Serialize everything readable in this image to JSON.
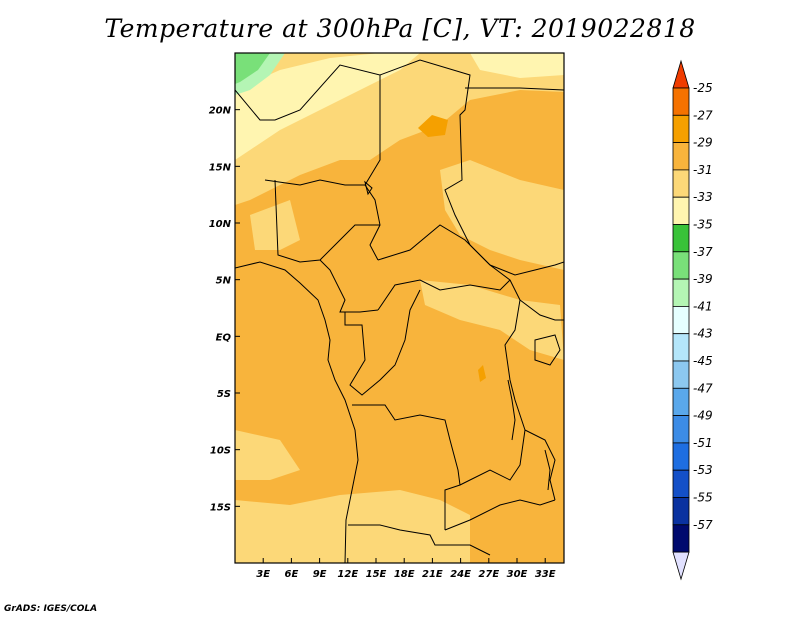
{
  "title": "Temperature at 300hPa [C], VT: 2019022818",
  "credit": "GrADS: IGES/COLA",
  "map": {
    "lon_range": [
      0,
      35
    ],
    "lat_range": [
      -20,
      25
    ],
    "x_ticks": [
      {
        "value": 3,
        "label": "3E"
      },
      {
        "value": 6,
        "label": "6E"
      },
      {
        "value": 9,
        "label": "9E"
      },
      {
        "value": 12,
        "label": "12E"
      },
      {
        "value": 15,
        "label": "15E"
      },
      {
        "value": 18,
        "label": "18E"
      },
      {
        "value": 21,
        "label": "21E"
      },
      {
        "value": 24,
        "label": "24E"
      },
      {
        "value": 27,
        "label": "27E"
      },
      {
        "value": 30,
        "label": "30E"
      },
      {
        "value": 33,
        "label": "33E"
      }
    ],
    "y_ticks": [
      {
        "value": 20,
        "label": "20N"
      },
      {
        "value": 15,
        "label": "15N"
      },
      {
        "value": 10,
        "label": "10N"
      },
      {
        "value": 5,
        "label": "5N"
      },
      {
        "value": 0,
        "label": "EQ"
      },
      {
        "value": -5,
        "label": "5S"
      },
      {
        "value": -10,
        "label": "10S"
      },
      {
        "value": -15,
        "label": "15S"
      }
    ]
  },
  "colorbar": {
    "labels": [
      "-25",
      "-27",
      "-29",
      "-31",
      "-33",
      "-35",
      "-37",
      "-39",
      "-41",
      "-43",
      "-45",
      "-47",
      "-49",
      "-51",
      "-53",
      "-55",
      "-57"
    ],
    "colors": [
      "#f03c00",
      "#f57200",
      "#f5a000",
      "#f8b43c",
      "#fcd878",
      "#fff5b0",
      "#39c239",
      "#79e079",
      "#b4f5b4",
      "#e6ffff",
      "#b4e6fa",
      "#8cc8f0",
      "#5aa8eb",
      "#3c8ce6",
      "#1e6ee1",
      "#1450c8",
      "#0a32a0",
      "#000a6e",
      "#e1e1ff"
    ]
  }
}
